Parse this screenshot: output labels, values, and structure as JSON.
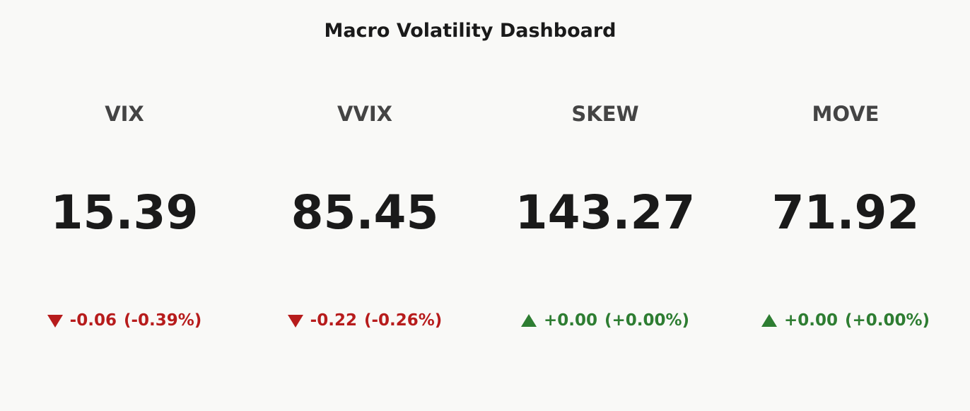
{
  "header": {
    "title": "Macro Volatility Dashboard"
  },
  "indicators": [
    {
      "name": "VIX",
      "value": "15.39",
      "change": "-0.06",
      "change_pct": "(-0.39%)",
      "color": "#b71c1c"
    },
    {
      "name": "VVIX",
      "value": "85.45",
      "change": "-0.22",
      "change_pct": "(-0.26%)",
      "color": "#b71c1c"
    },
    {
      "name": "SKEW",
      "value": "143.27",
      "change": "+0.00",
      "change_pct": "(+0.00%)",
      "color": "#2e7d32"
    },
    {
      "name": "MOVE",
      "value": "71.92",
      "change": "+0.00",
      "change_pct": "(+0.00%)",
      "color": "#2e7d32"
    }
  ]
}
